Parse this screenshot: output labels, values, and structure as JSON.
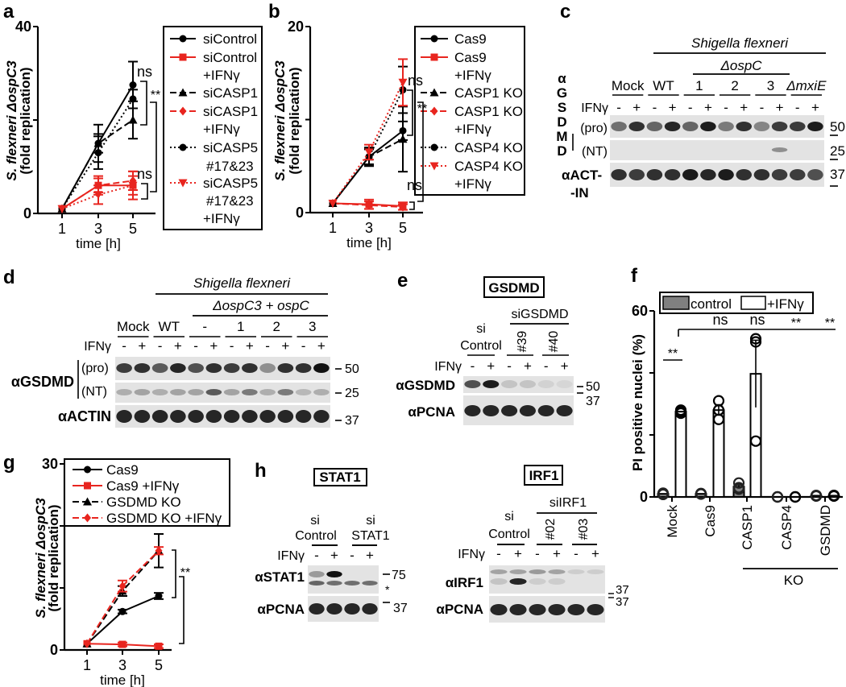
{
  "chart_data": [
    {
      "panel": "a",
      "type": "line",
      "x": [
        1,
        3,
        5
      ],
      "xlabel": "time [h]",
      "ylabel": [
        "S. flexneri ΔospC3",
        "(fold replication)"
      ],
      "ylim": [
        0,
        40
      ],
      "yticks": [
        0,
        20,
        40
      ],
      "ytick_labels": [
        "0",
        "",
        "40"
      ],
      "series": [
        {
          "name_lines": [
            "siControl"
          ],
          "color": "#000000",
          "line": "solid",
          "marker": "circle",
          "values": [
            1,
            15,
            27.5
          ],
          "err": [
            0,
            4,
            5
          ]
        },
        {
          "name_lines": [
            "siControl",
            "+IFNγ"
          ],
          "color": "#e8251f",
          "line": "solid",
          "marker": "square",
          "values": [
            1,
            6,
            6
          ],
          "err": [
            0,
            1.5,
            2
          ]
        },
        {
          "name_lines": [
            "siCASP1"
          ],
          "color": "#000000",
          "line": "dashed",
          "marker": "triangle",
          "values": [
            1,
            15,
            20
          ],
          "err": [
            0,
            2,
            4
          ]
        },
        {
          "name_lines": [
            "siCASP1",
            "+IFNγ"
          ],
          "color": "#e8251f",
          "line": "dashed",
          "marker": "diamond",
          "values": [
            1,
            6,
            7
          ],
          "err": [
            0,
            2,
            2
          ]
        },
        {
          "name_lines": [
            "siCASP5",
            "#17&23"
          ],
          "color": "#000000",
          "line": "dotted",
          "marker": "circle",
          "values": [
            1,
            13,
            24.5
          ],
          "err": [
            0,
            3.5,
            2
          ]
        },
        {
          "name_lines": [
            "siCASP5",
            "#17&23",
            "+IFNγ"
          ],
          "color": "#e8251f",
          "line": "dotted",
          "marker": "triangle-down",
          "values": [
            1,
            4,
            6
          ],
          "err": [
            0,
            2,
            3
          ]
        }
      ],
      "annotations": [
        "ns",
        "**",
        "ns"
      ]
    },
    {
      "panel": "b",
      "type": "line",
      "x": [
        1,
        3,
        5
      ],
      "xlabel": "time [h]",
      "ylabel": [
        "S. flexneri ΔospC3",
        "(fold replication)"
      ],
      "ylim": [
        0,
        20
      ],
      "yticks": [
        0,
        10,
        20
      ],
      "ytick_labels": [
        "0",
        "",
        "20"
      ],
      "series": [
        {
          "name_lines": [
            "Cas9"
          ],
          "color": "#000000",
          "line": "solid",
          "marker": "circle",
          "values": [
            1,
            6,
            8.8
          ],
          "err": [
            0,
            1,
            1
          ]
        },
        {
          "name_lines": [
            "Cas9",
            "+IFNγ"
          ],
          "color": "#e8251f",
          "line": "solid",
          "marker": "square",
          "values": [
            1,
            0.9,
            0.7
          ],
          "err": [
            0,
            0.5,
            0.4
          ]
        },
        {
          "name_lines": [
            "CASP1 KO"
          ],
          "color": "#000000",
          "line": "dashed",
          "marker": "triangle",
          "values": [
            1,
            6,
            7.9
          ],
          "err": [
            0,
            0.9,
            3.5
          ]
        },
        {
          "name_lines": [
            "CASP1 KO",
            "+IFNγ"
          ],
          "color": "#e8251f",
          "line": "dashed",
          "marker": "diamond",
          "values": [
            1,
            0.8,
            0.6
          ],
          "err": [
            0,
            0.4,
            0.3
          ]
        },
        {
          "name_lines": [
            "CASP4 KO"
          ],
          "color": "#000000",
          "line": "dotted",
          "marker": "circle",
          "values": [
            1,
            6,
            13.2
          ],
          "err": [
            0,
            0.8,
            2.5
          ]
        },
        {
          "name_lines": [
            "CASP4 KO",
            "+IFNγ"
          ],
          "color": "#e8251f",
          "line": "dotted",
          "marker": "triangle-down",
          "values": [
            1,
            6.5,
            14
          ],
          "err": [
            0,
            0.8,
            2.5
          ]
        }
      ],
      "annotations": [
        "ns",
        "**",
        "ns"
      ]
    },
    {
      "panel": "f",
      "type": "bar",
      "categories": [
        "Mock",
        "Cas9",
        "CASP1",
        "CASP4",
        "GSDMD"
      ],
      "group_label": "KO",
      "ylabel": "PI positive nuclei (%)",
      "ylim": [
        0,
        60
      ],
      "yticks": [
        0,
        20,
        40,
        60
      ],
      "ytick_labels": [
        "0",
        "",
        "",
        "60"
      ],
      "series": [
        {
          "name": "control",
          "color": "#808080",
          "values": [
            1,
            1,
            3.3,
            0,
            0.4
          ],
          "points": [
            [
              0.8,
              1.2,
              1.0
            ],
            [
              1.0,
              1.1,
              0.9
            ],
            [
              2.5,
              3.0,
              4.5
            ],
            [
              0,
              0,
              0
            ],
            [
              0.5,
              0.3,
              0.3
            ]
          ]
        },
        {
          "name": "+IFNγ",
          "color": "#ffffff",
          "values": [
            27.5,
            28,
            39.7,
            0,
            0.4
          ],
          "points": [
            [
              27,
              27.5,
              28
            ],
            [
              25,
              28,
              31
            ],
            [
              18,
              50,
              51
            ],
            [
              0,
              0,
              0
            ],
            [
              0.3,
              0.5,
              0.3
            ]
          ]
        }
      ],
      "annotations": [
        "**",
        "ns",
        "ns",
        "**",
        "**"
      ]
    },
    {
      "panel": "g",
      "type": "line",
      "x": [
        1,
        3,
        5
      ],
      "xlabel": "time [h]",
      "ylabel": [
        "S. flexneri ΔospC3",
        "(fold replication)"
      ],
      "ylim": [
        0,
        30
      ],
      "yticks": [
        0,
        10,
        20,
        30
      ],
      "ytick_labels": [
        "0",
        "",
        "",
        "30"
      ],
      "series": [
        {
          "name_lines": [
            "Cas9"
          ],
          "color": "#000000",
          "line": "solid",
          "marker": "circle",
          "values": [
            1,
            6.2,
            8.7
          ],
          "err": [
            0,
            0.3,
            0.5
          ]
        },
        {
          "name_lines": [
            "Cas9 +IFNγ"
          ],
          "color": "#e8251f",
          "line": "solid",
          "marker": "square",
          "values": [
            1,
            0.9,
            0.6
          ],
          "err": [
            0,
            0.3,
            0.3
          ]
        },
        {
          "name_lines": [
            "GSDMD KO"
          ],
          "color": "#000000",
          "line": "dashed",
          "marker": "triangle",
          "values": [
            1,
            9.5,
            16
          ],
          "err": [
            0,
            0.8,
            2.7
          ]
        },
        {
          "name_lines": [
            "GSDMD KO +IFNγ"
          ],
          "color": "#e8251f",
          "line": "dashed",
          "marker": "diamond",
          "values": [
            1,
            10.3,
            16
          ],
          "err": [
            0,
            0.9,
            0.6
          ]
        }
      ],
      "annotations": [
        "**"
      ]
    }
  ],
  "blots": {
    "c": {
      "panel": "c",
      "header": "Shigella flexneri",
      "subheader": "ΔospC",
      "groups": [
        "Mock",
        "WT",
        "1",
        "2",
        "3",
        "ΔmxiE"
      ],
      "treatment": "IFNγ",
      "signs": [
        "-",
        "+"
      ],
      "antibody": "αGSDMD",
      "rows": [
        "(pro)",
        "(NT)"
      ],
      "loading_label": [
        "αACT-",
        "-IN"
      ],
      "markers": [
        "50",
        "25",
        "37"
      ]
    },
    "d": {
      "panel": "d",
      "header": "Shigella flexneri",
      "subheader": "ΔospC3 + ospC",
      "groups": [
        "Mock",
        "WT",
        "-",
        "1",
        "2",
        "3"
      ],
      "treatment": "IFNγ",
      "signs": [
        "-",
        "+"
      ],
      "antibody": "αGSDMD",
      "rows": [
        "(pro)",
        "(NT)"
      ],
      "loading_label": "αACTIN",
      "markers": [
        "50",
        "25",
        "37"
      ]
    },
    "e": {
      "panel": "e",
      "title": "GSDMD",
      "control": [
        "si",
        "Control"
      ],
      "knockdown": "siGSDMD",
      "oligos": [
        "#39",
        "#40"
      ],
      "treatment": "IFNγ",
      "signs": [
        "-",
        "+"
      ],
      "rows": [
        "αGSDMD",
        "αPCNA"
      ],
      "markers": [
        "50",
        "37"
      ]
    },
    "h": {
      "panel": "h",
      "stat1": {
        "title": "STAT1",
        "groups": [
          [
            "si",
            "Control"
          ],
          [
            "si",
            "STAT1"
          ]
        ],
        "treatment": "IFNγ",
        "signs": [
          "-",
          "+"
        ],
        "rows": [
          "αSTAT1",
          "αPCNA"
        ],
        "markers": [
          "75",
          "*",
          "37"
        ]
      },
      "irf1": {
        "title": "IRF1",
        "control": [
          "si",
          "Control"
        ],
        "knockdown": "siIRF1",
        "oligos": [
          "#02",
          "#03"
        ],
        "treatment": "IFNγ",
        "signs": [
          "-",
          "+"
        ],
        "rows": [
          "αIRF1",
          "αPCNA"
        ],
        "markers": [
          "37",
          "37"
        ]
      }
    }
  }
}
